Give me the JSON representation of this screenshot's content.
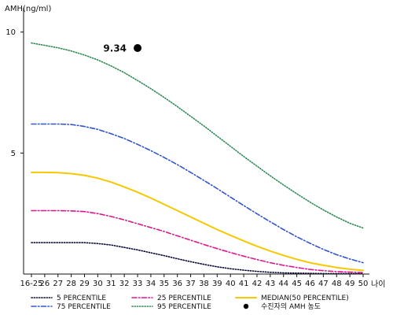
{
  "chart_data": {
    "type": "line",
    "title": "",
    "ylabel": "AMH(ng/ml)",
    "xlabel": "나이",
    "x": [
      "16-25",
      "26",
      "27",
      "28",
      "29",
      "30",
      "31",
      "32",
      "33",
      "34",
      "35",
      "36",
      "37",
      "38",
      "39",
      "40",
      "41",
      "42",
      "43",
      "44",
      "45",
      "46",
      "47",
      "48",
      "49",
      "50"
    ],
    "ylim": [
      0,
      11
    ],
    "yticks": [
      5,
      10
    ],
    "grid": false,
    "legend_position": "bottom",
    "series": [
      {
        "name": "5 PERCENTILE",
        "style": "dotted",
        "color": "#0a0a3a",
        "values": [
          1.3,
          1.3,
          1.3,
          1.3,
          1.3,
          1.26,
          1.2,
          1.1,
          1.0,
          0.88,
          0.76,
          0.63,
          0.51,
          0.4,
          0.3,
          0.22,
          0.16,
          0.11,
          0.07,
          0.05,
          0.04,
          0.03,
          0.02,
          0.02,
          0.02,
          0.02
        ]
      },
      {
        "name": "25 PERCENTILE",
        "style": "dashdot",
        "color": "#e0158f",
        "values": [
          2.62,
          2.62,
          2.62,
          2.61,
          2.58,
          2.5,
          2.38,
          2.24,
          2.08,
          1.92,
          1.76,
          1.58,
          1.4,
          1.22,
          1.05,
          0.89,
          0.74,
          0.6,
          0.47,
          0.36,
          0.27,
          0.19,
          0.14,
          0.1,
          0.08,
          0.06
        ]
      },
      {
        "name": "MEDIAN(50 PERCENTILE)",
        "style": "solid",
        "color": "#f5c800",
        "values": [
          4.2,
          4.2,
          4.19,
          4.15,
          4.08,
          3.96,
          3.8,
          3.6,
          3.38,
          3.14,
          2.88,
          2.62,
          2.36,
          2.1,
          1.84,
          1.6,
          1.37,
          1.15,
          0.95,
          0.77,
          0.61,
          0.47,
          0.36,
          0.27,
          0.2,
          0.15
        ]
      },
      {
        "name": "75 PERCENTILE",
        "style": "dashdot",
        "color": "#3355cc",
        "values": [
          6.2,
          6.2,
          6.2,
          6.18,
          6.1,
          5.98,
          5.8,
          5.6,
          5.36,
          5.1,
          4.82,
          4.52,
          4.2,
          3.87,
          3.53,
          3.18,
          2.83,
          2.49,
          2.16,
          1.84,
          1.54,
          1.27,
          1.02,
          0.8,
          0.62,
          0.47
        ]
      },
      {
        "name": "95 PERCENTILE",
        "style": "dotted",
        "color": "#2e8b57",
        "values": [
          9.55,
          9.45,
          9.35,
          9.22,
          9.05,
          8.85,
          8.6,
          8.32,
          8.0,
          7.66,
          7.3,
          6.92,
          6.52,
          6.12,
          5.7,
          5.28,
          4.86,
          4.46,
          4.06,
          3.68,
          3.32,
          2.97,
          2.65,
          2.36,
          2.1,
          1.9
        ]
      }
    ],
    "point": {
      "name": "수진자의 AMH 농도",
      "x": "33",
      "y": 9.34,
      "label": "9.34",
      "color": "#000000"
    }
  }
}
